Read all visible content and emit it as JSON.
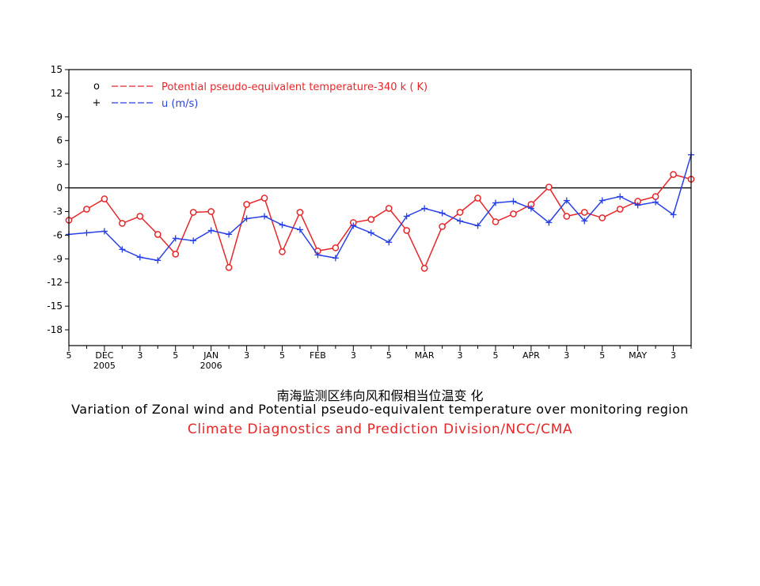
{
  "chart_data": {
    "type": "line",
    "ylim": [
      -20,
      15
    ],
    "yticks": [
      15,
      12,
      9,
      6,
      3,
      0,
      -3,
      -6,
      -9,
      -12,
      -15,
      -18
    ],
    "ytick_labels": [
      "15",
      "12",
      "9",
      "6",
      "3",
      "0",
      "-3",
      "-6",
      "-9",
      "-12",
      "-15",
      "-18"
    ],
    "xticks": [
      {
        "label": "5",
        "sub": ""
      },
      {
        "label": "DEC",
        "sub": "2005"
      },
      {
        "label": "3",
        "sub": ""
      },
      {
        "label": "5",
        "sub": ""
      },
      {
        "label": "JAN",
        "sub": "2006"
      },
      {
        "label": "3",
        "sub": ""
      },
      {
        "label": "5",
        "sub": ""
      },
      {
        "label": "FEB",
        "sub": ""
      },
      {
        "label": "3",
        "sub": ""
      },
      {
        "label": "5",
        "sub": ""
      },
      {
        "label": "MAR",
        "sub": ""
      },
      {
        "label": "3",
        "sub": ""
      },
      {
        "label": "5",
        "sub": ""
      },
      {
        "label": "APR",
        "sub": ""
      },
      {
        "label": "3",
        "sub": ""
      },
      {
        "label": "5",
        "sub": ""
      },
      {
        "label": "MAY",
        "sub": ""
      },
      {
        "label": "3",
        "sub": ""
      }
    ],
    "series": [
      {
        "name": "Potential pseudo-equivalent temperature-340 k  ( K)",
        "marker": "circle",
        "legend_marker": "o",
        "color": "#e8262a",
        "values": [
          -4.1,
          -2.7,
          -1.4,
          -4.5,
          -3.6,
          -5.9,
          -8.4,
          -3.1,
          -3.0,
          -10.1,
          -2.1,
          -1.3,
          -8.1,
          -3.1,
          -8.0,
          -7.6,
          -4.4,
          -4.0,
          -2.6,
          -5.4,
          -10.2,
          -4.9,
          -3.1,
          -1.3,
          -4.3,
          -3.3,
          -2.1,
          0.1,
          -3.6,
          -3.1,
          -3.8,
          -2.7,
          -1.7,
          -1.1,
          1.7,
          1.1
        ]
      },
      {
        "name": "u  (m/s)",
        "marker": "plus",
        "legend_marker": "+",
        "color": "#2740e6",
        "values": [
          -5.9,
          -5.7,
          -5.5,
          -7.8,
          -8.8,
          -9.2,
          -6.4,
          -6.7,
          -5.4,
          -5.9,
          -3.9,
          -3.6,
          -4.7,
          -5.3,
          -8.5,
          -8.9,
          -4.8,
          -5.7,
          -6.9,
          -3.6,
          -2.6,
          -3.2,
          -4.2,
          -4.8,
          -1.9,
          -1.7,
          -2.6,
          -4.4,
          -1.6,
          -4.2,
          -1.6,
          -1.1,
          -2.2,
          -1.8,
          -3.4,
          4.2
        ]
      }
    ],
    "legend_position": "top-left",
    "zero_line": true
  },
  "captions": {
    "chinese_title": "南海监测区纬向风和假相当位温变 化",
    "english_title": "Variation of Zonal wind and Potential pseudo-equivalent temperature over monitoring region",
    "organization": "Climate Diagnostics and Prediction Division/NCC/CMA"
  }
}
